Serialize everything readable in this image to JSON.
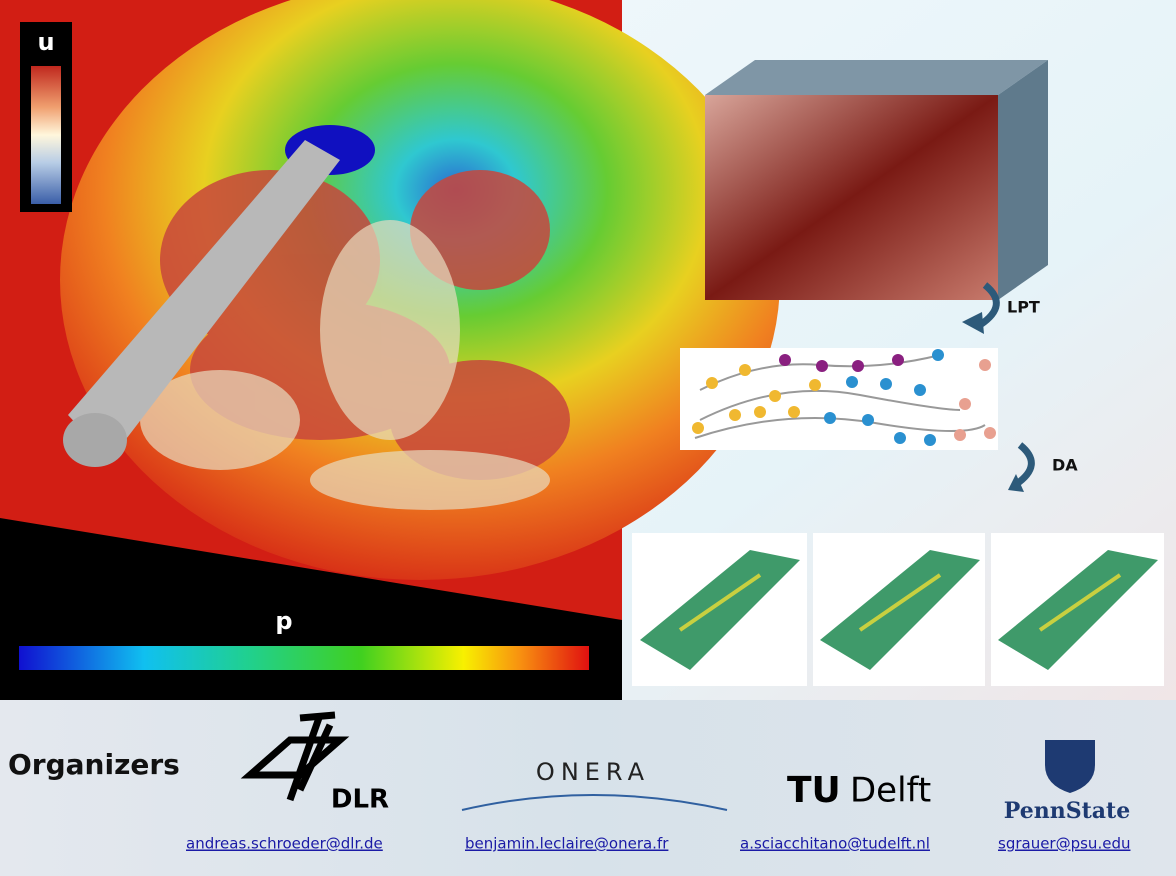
{
  "left_panel": {
    "colorbar_u_label": "u",
    "colorbar_p_label": "p"
  },
  "right_panel": {
    "step1_label": "LPT",
    "step2_label": "DA"
  },
  "organizers": {
    "heading": "Organizers",
    "logos": [
      "DLR",
      "ONERA",
      "TU",
      "Delft",
      "PennState"
    ],
    "emails": [
      "andreas.schroeder@dlr.de",
      "benjamin.leclaire@onera.fr",
      "a.sciacchitano@tudelft.nl",
      "sgrauer@psu.edu"
    ]
  }
}
